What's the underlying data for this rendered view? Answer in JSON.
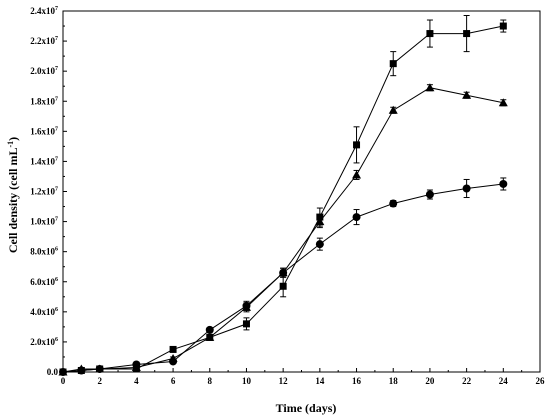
{
  "chart_data": {
    "type": "line",
    "xlabel": "Time (days)",
    "ylabel_main": "Cell density (cell mL",
    "ylabel_sup": "-1",
    "ylabel_close": ")",
    "xlim": [
      0,
      26
    ],
    "ylim": [
      0,
      24000000
    ],
    "x_ticks": [
      0,
      2,
      4,
      6,
      8,
      10,
      12,
      14,
      16,
      18,
      20,
      22,
      24,
      26
    ],
    "y_ticks": [
      {
        "value": 0,
        "mantissa": "0.0",
        "exp": ""
      },
      {
        "value": 2000000,
        "mantissa": "2.0x10",
        "exp": "6"
      },
      {
        "value": 4000000,
        "mantissa": "4.0x10",
        "exp": "6"
      },
      {
        "value": 6000000,
        "mantissa": "6.0x10",
        "exp": "6"
      },
      {
        "value": 8000000,
        "mantissa": "8.0x10",
        "exp": "6"
      },
      {
        "value": 10000000,
        "mantissa": "1.0x10",
        "exp": "7"
      },
      {
        "value": 12000000,
        "mantissa": "1.2x10",
        "exp": "7"
      },
      {
        "value": 14000000,
        "mantissa": "1.4x10",
        "exp": "7"
      },
      {
        "value": 16000000,
        "mantissa": "1.6x10",
        "exp": "7"
      },
      {
        "value": 18000000,
        "mantissa": "1.8x10",
        "exp": "7"
      },
      {
        "value": 20000000,
        "mantissa": "2.0x10",
        "exp": "7"
      },
      {
        "value": 22000000,
        "mantissa": "2.2x10",
        "exp": "7"
      },
      {
        "value": 24000000,
        "mantissa": "2.4x10",
        "exp": "7"
      }
    ],
    "series": [
      {
        "marker": "square",
        "x": [
          0,
          1,
          2,
          4,
          6,
          8,
          10,
          12,
          14,
          16,
          18,
          20,
          22,
          24
        ],
        "y": [
          0,
          100000,
          200000,
          200000,
          1500000,
          2300000,
          3200000,
          5700000,
          10300000,
          15100000,
          20500000,
          22500000,
          22500000,
          23000000
        ],
        "err": [
          0,
          50000,
          50000,
          100000,
          150000,
          200000,
          400000,
          700000,
          600000,
          1200000,
          800000,
          900000,
          1200000,
          400000
        ]
      },
      {
        "marker": "triangle",
        "x": [
          0,
          1,
          2,
          4,
          6,
          8,
          10,
          12,
          14,
          16,
          18,
          20,
          22,
          24
        ],
        "y": [
          0,
          200000,
          200000,
          300000,
          900000,
          2300000,
          4300000,
          6600000,
          10000000,
          13100000,
          17400000,
          18900000,
          18400000,
          17900000
        ],
        "err": [
          0,
          50000,
          50000,
          80000,
          100000,
          150000,
          300000,
          300000,
          400000,
          300000,
          200000,
          200000,
          200000,
          200000
        ]
      },
      {
        "marker": "circle",
        "x": [
          0,
          1,
          2,
          4,
          6,
          8,
          10,
          12,
          14,
          16,
          18,
          20,
          22,
          24
        ],
        "y": [
          0,
          100000,
          200000,
          500000,
          700000,
          2800000,
          4400000,
          6600000,
          8500000,
          10300000,
          11200000,
          11800000,
          12200000,
          12500000
        ],
        "err": [
          0,
          50000,
          50000,
          80000,
          100000,
          150000,
          300000,
          300000,
          400000,
          500000,
          200000,
          300000,
          600000,
          400000
        ]
      }
    ]
  }
}
